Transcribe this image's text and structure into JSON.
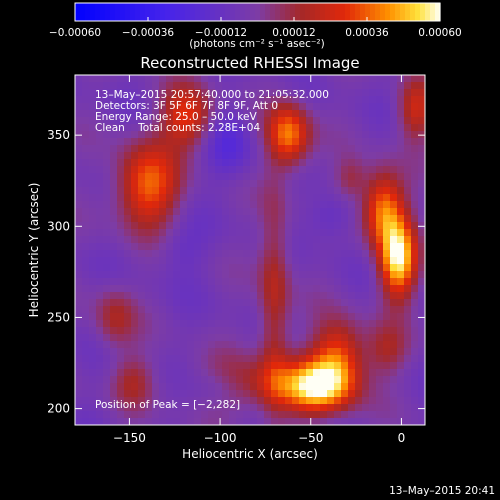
{
  "chart_data": {
    "type": "heatmap",
    "title": "Reconstructed RHESSI Image",
    "xlabel": "Heliocentric X (arcsec)",
    "ylabel": "Heliocentric Y (arcsec)",
    "xlim": [
      -180,
      13
    ],
    "ylim": [
      191,
      383
    ],
    "x_ticks": [
      -150,
      -100,
      -50,
      0
    ],
    "y_ticks": [
      200,
      250,
      300,
      350
    ],
    "x_tick_labels": [
      "−150",
      "−100",
      "−50",
      "0"
    ],
    "y_tick_labels": [
      "200",
      "250",
      "300",
      "350"
    ],
    "colorbar": {
      "range": [
        -0.0006,
        0.0006
      ],
      "ticks": [
        -0.0006,
        -0.00036,
        -0.00012,
        0.00012,
        0.00036,
        0.0006
      ],
      "tick_labels": [
        "−0.00060",
        "−0.00036",
        "−0.00012",
        "0.00012",
        "0.00036",
        "0.00060"
      ],
      "unit_label": "(photons cm⁻² s⁻¹ asec⁻²)"
    },
    "annotations": {
      "time_range": "13–May–2015 20:57:40.000 to 21:05:32.000",
      "detectors": "Detectors: 3F 5F 6F 7F 8F 9F, Att 0",
      "energy_range": "Energy Range: 25.0 – 50.0 keV",
      "method": "Clean    Total counts: 2.28E+04",
      "peak": "Position of Peak = [−2,282]"
    },
    "blobs": [
      {
        "x": -2,
        "y": 282,
        "sx": 7,
        "sy": 15,
        "amp": 0.0006
      },
      {
        "x": -10,
        "y": 310,
        "sx": 8,
        "sy": 14,
        "amp": 0.00045
      },
      {
        "x": -48,
        "y": 212,
        "sx": 14,
        "sy": 10,
        "amp": 0.00058
      },
      {
        "x": -35,
        "y": 228,
        "sx": 10,
        "sy": 14,
        "amp": 0.0004
      },
      {
        "x": -140,
        "y": 322,
        "sx": 12,
        "sy": 16,
        "amp": 0.00042
      },
      {
        "x": -118,
        "y": 360,
        "sx": 10,
        "sy": 12,
        "amp": 0.00035
      },
      {
        "x": -62,
        "y": 350,
        "sx": 8,
        "sy": 12,
        "amp": 0.00045
      },
      {
        "x": -70,
        "y": 260,
        "sx": 6,
        "sy": 45,
        "amp": 0.00024
      },
      {
        "x": -92,
        "y": 213,
        "sx": 18,
        "sy": 10,
        "amp": 0.00028
      },
      {
        "x": -158,
        "y": 250,
        "sx": 8,
        "sy": 12,
        "amp": 0.0002
      },
      {
        "x": -148,
        "y": 215,
        "sx": 8,
        "sy": 10,
        "amp": 0.00018
      },
      {
        "x": 8,
        "y": 364,
        "sx": 7,
        "sy": 12,
        "amp": 0.00028
      },
      {
        "x": -8,
        "y": 232,
        "sx": 8,
        "sy": 10,
        "amp": 0.00018
      },
      {
        "x": -28,
        "y": 326,
        "sx": 6,
        "sy": 8,
        "amp": 0.00016
      },
      {
        "x": -100,
        "y": 212,
        "sx": 12,
        "sy": 8,
        "amp": -0.0002
      },
      {
        "x": -95,
        "y": 345,
        "sx": 9,
        "sy": 14,
        "amp": -0.00015
      },
      {
        "x": -40,
        "y": 305,
        "sx": 9,
        "sy": 9,
        "amp": -0.00012
      },
      {
        "x": -122,
        "y": 288,
        "sx": 10,
        "sy": 10,
        "amp": -8e-05
      }
    ],
    "background": -5e-05
  },
  "footer": {
    "timestamp": "13–May–2015 20:41"
  }
}
